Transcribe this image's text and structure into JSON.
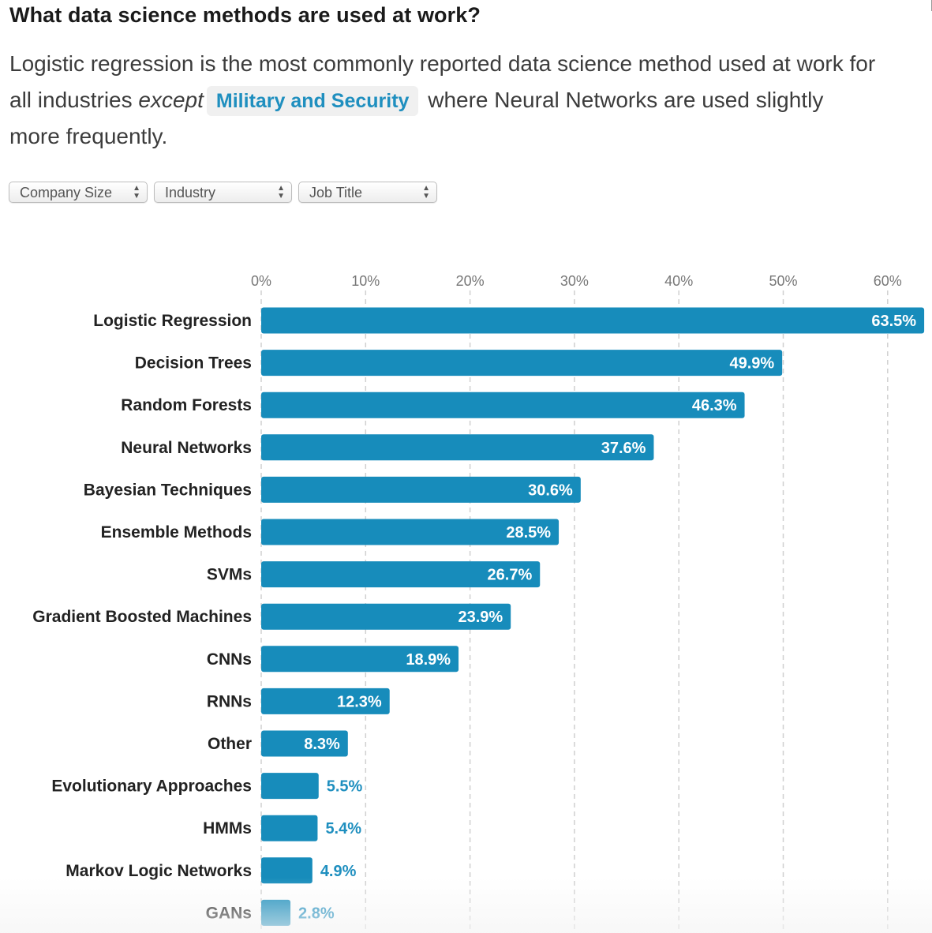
{
  "header": {
    "title": "What data science methods are used at work?",
    "subtitle_part1": "Logistic regression is the most commonly reported data science method used at work for all industries ",
    "subtitle_emphasis": "except",
    "subtitle_highlight": "Military and Security",
    "subtitle_part2": " where Neural Networks are used slightly more frequently."
  },
  "filters": [
    {
      "label": "Company Size",
      "icon": "updown-arrows-icon"
    },
    {
      "label": "Industry",
      "icon": "updown-arrows-icon"
    },
    {
      "label": "Job Title",
      "icon": "updown-arrows-icon"
    }
  ],
  "colors": {
    "bar": "#178cbb",
    "highlight_text": "#1f8fbf",
    "label_inside": "#ffffff",
    "label_outside": "#1f8fbf",
    "grid": "#d0d0d0",
    "tick_text": "#777777"
  },
  "chart_data": {
    "type": "bar",
    "orientation": "horizontal",
    "title": "What data science methods are used at work?",
    "xlabel": "",
    "ylabel": "",
    "xlim": [
      0,
      63.5
    ],
    "ticks": [
      0,
      10,
      20,
      30,
      40,
      50,
      60
    ],
    "tick_labels": [
      "0%",
      "10%",
      "20%",
      "30%",
      "40%",
      "50%",
      "60%"
    ],
    "grid": true,
    "categories": [
      "Logistic Regression",
      "Decision Trees",
      "Random Forests",
      "Neural Networks",
      "Bayesian Techniques",
      "Ensemble Methods",
      "SVMs",
      "Gradient Boosted Machines",
      "CNNs",
      "RNNs",
      "Other",
      "Evolutionary Approaches",
      "HMMs",
      "Markov Logic Networks",
      "GANs"
    ],
    "values": [
      63.5,
      49.9,
      46.3,
      37.6,
      30.6,
      28.5,
      26.7,
      23.9,
      18.9,
      12.3,
      8.3,
      5.5,
      5.4,
      4.9,
      2.8
    ],
    "value_labels": [
      "63.5%",
      "49.9%",
      "46.3%",
      "37.6%",
      "30.6%",
      "28.5%",
      "26.7%",
      "23.9%",
      "18.9%",
      "12.3%",
      "8.3%",
      "5.5%",
      "5.4%",
      "4.9%",
      "2.8%"
    ]
  }
}
